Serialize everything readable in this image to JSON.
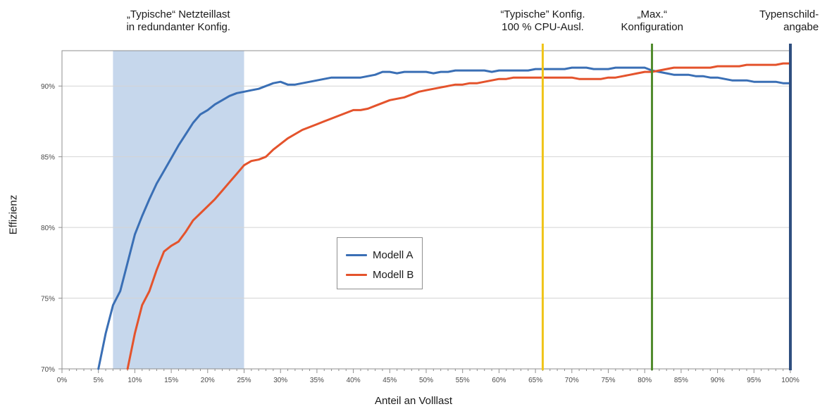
{
  "chart_data": {
    "type": "line",
    "xlabel": "Anteil an Volllast",
    "ylabel": "Effizienz",
    "x_ticks": [
      "0%",
      "5%",
      "10%",
      "15%",
      "20%",
      "25%",
      "30%",
      "35%",
      "40%",
      "45%",
      "50%",
      "55%",
      "60%",
      "65%",
      "70%",
      "75%",
      "80%",
      "85%",
      "90%",
      "95%",
      "100%"
    ],
    "y_ticks": [
      "70%",
      "75%",
      "80%",
      "85%",
      "90%"
    ],
    "xlim": [
      0,
      100
    ],
    "ylim": [
      70,
      92.5
    ],
    "grid": "horizontal",
    "legend_placement": "center",
    "series": [
      {
        "name": "Modell A",
        "color": "#3a6fb5",
        "x": [
          5,
          6,
          7,
          8,
          9,
          10,
          11,
          12,
          13,
          14,
          15,
          16,
          17,
          18,
          19,
          20,
          21,
          22,
          23,
          24,
          25,
          26,
          27,
          28,
          29,
          30,
          31,
          32,
          33,
          34,
          35,
          36,
          37,
          38,
          39,
          40,
          41,
          42,
          43,
          44,
          45,
          46,
          47,
          48,
          49,
          50,
          51,
          52,
          53,
          54,
          55,
          56,
          57,
          58,
          59,
          60,
          61,
          62,
          63,
          64,
          65,
          66,
          67,
          68,
          69,
          70,
          71,
          72,
          73,
          74,
          75,
          76,
          77,
          78,
          79,
          80,
          81,
          82,
          83,
          84,
          85,
          86,
          87,
          88,
          89,
          90,
          91,
          92,
          93,
          94,
          95,
          96,
          97,
          98,
          99,
          100
        ],
        "values": [
          70.0,
          72.5,
          74.5,
          75.5,
          77.5,
          79.5,
          80.8,
          82.0,
          83.1,
          84.0,
          84.9,
          85.8,
          86.6,
          87.4,
          88.0,
          88.3,
          88.7,
          89.0,
          89.3,
          89.5,
          89.6,
          89.7,
          89.8,
          90.0,
          90.2,
          90.3,
          90.1,
          90.1,
          90.2,
          90.3,
          90.4,
          90.5,
          90.6,
          90.6,
          90.6,
          90.6,
          90.6,
          90.7,
          90.8,
          91.0,
          91.0,
          90.9,
          91.0,
          91.0,
          91.0,
          91.0,
          90.9,
          91.0,
          91.0,
          91.1,
          91.1,
          91.1,
          91.1,
          91.1,
          91.0,
          91.1,
          91.1,
          91.1,
          91.1,
          91.1,
          91.2,
          91.2,
          91.2,
          91.2,
          91.2,
          91.3,
          91.3,
          91.3,
          91.2,
          91.2,
          91.2,
          91.3,
          91.3,
          91.3,
          91.3,
          91.3,
          91.1,
          91.0,
          90.9,
          90.8,
          90.8,
          90.8,
          90.7,
          90.7,
          90.6,
          90.6,
          90.5,
          90.4,
          90.4,
          90.4,
          90.3,
          90.3,
          90.3,
          90.3,
          90.2,
          90.2
        ]
      },
      {
        "name": "Modell B",
        "color": "#e4532c",
        "x": [
          9,
          10,
          11,
          12,
          13,
          14,
          15,
          16,
          17,
          18,
          19,
          20,
          21,
          22,
          23,
          24,
          25,
          26,
          27,
          28,
          29,
          30,
          31,
          32,
          33,
          34,
          35,
          36,
          37,
          38,
          39,
          40,
          41,
          42,
          43,
          44,
          45,
          46,
          47,
          48,
          49,
          50,
          51,
          52,
          53,
          54,
          55,
          56,
          57,
          58,
          59,
          60,
          61,
          62,
          63,
          64,
          65,
          66,
          67,
          68,
          69,
          70,
          71,
          72,
          73,
          74,
          75,
          76,
          77,
          78,
          79,
          80,
          81,
          82,
          83,
          84,
          85,
          86,
          87,
          88,
          89,
          90,
          91,
          92,
          93,
          94,
          95,
          96,
          97,
          98,
          99,
          100
        ],
        "values": [
          70.0,
          72.5,
          74.5,
          75.5,
          77.0,
          78.3,
          78.7,
          79.0,
          79.7,
          80.5,
          81.0,
          81.5,
          82.0,
          82.6,
          83.2,
          83.8,
          84.4,
          84.7,
          84.8,
          85.0,
          85.5,
          85.9,
          86.3,
          86.6,
          86.9,
          87.1,
          87.3,
          87.5,
          87.7,
          87.9,
          88.1,
          88.3,
          88.3,
          88.4,
          88.6,
          88.8,
          89.0,
          89.1,
          89.2,
          89.4,
          89.6,
          89.7,
          89.8,
          89.9,
          90.0,
          90.1,
          90.1,
          90.2,
          90.2,
          90.3,
          90.4,
          90.5,
          90.5,
          90.6,
          90.6,
          90.6,
          90.6,
          90.6,
          90.6,
          90.6,
          90.6,
          90.6,
          90.5,
          90.5,
          90.5,
          90.5,
          90.6,
          90.6,
          90.7,
          90.8,
          90.9,
          91.0,
          91.0,
          91.1,
          91.2,
          91.3,
          91.3,
          91.3,
          91.3,
          91.3,
          91.3,
          91.4,
          91.4,
          91.4,
          91.4,
          91.5,
          91.5,
          91.5,
          91.5,
          91.5,
          91.6,
          91.6
        ]
      }
    ],
    "regions": [
      {
        "x_range": [
          7,
          25
        ],
        "color": "#c6d7ec",
        "label_lines": [
          "„Typische“ Netzteillast",
          "in redundanter Konfig."
        ]
      }
    ],
    "markers": [
      {
        "x": 66,
        "color": "#f0c419",
        "label_lines": [
          "“Typische” Konfig.",
          "100 % CPU-Ausl."
        ]
      },
      {
        "x": 81,
        "color": "#4f8a2b",
        "label_lines": [
          "„Max.“",
          "Konfiguration"
        ]
      },
      {
        "x": 100,
        "color": "#2f4f7f",
        "label_lines": [
          "Typenschild-",
          "angabe"
        ]
      }
    ]
  }
}
